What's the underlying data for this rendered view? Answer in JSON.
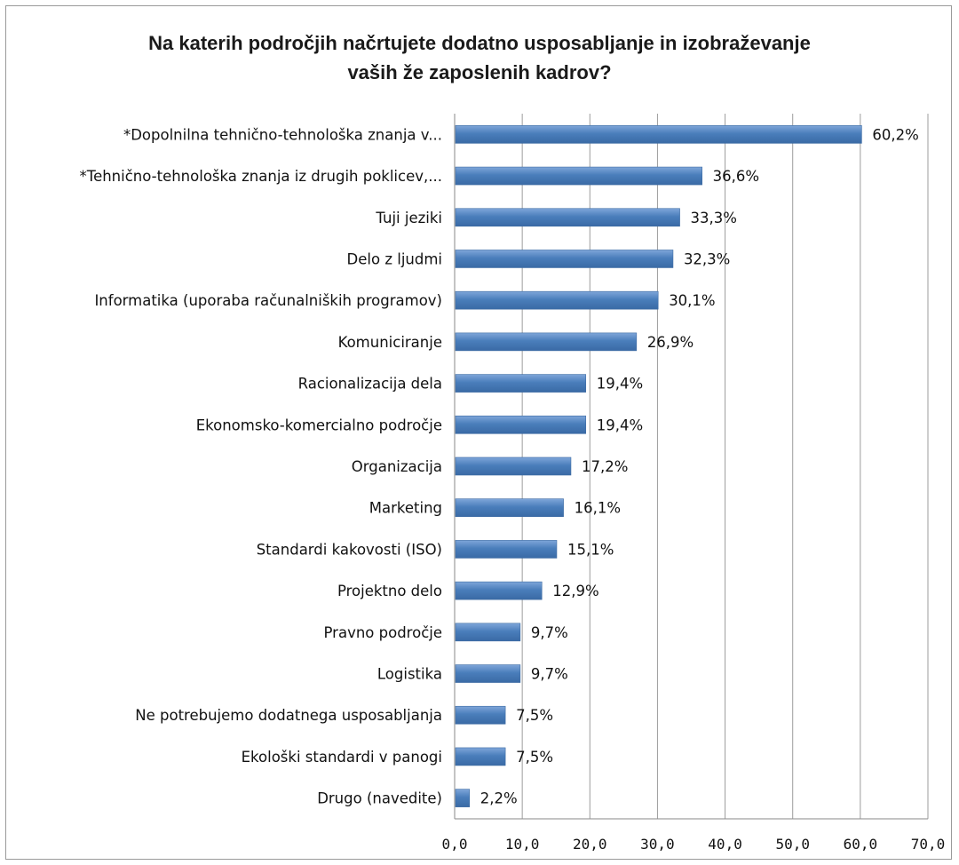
{
  "chart_data": {
    "type": "bar",
    "orientation": "horizontal",
    "title_lines": [
      "Na katerih področjih načrtujete dodatno usposabljanje  in izobraževanje",
      "vaših že zaposlenih kadrov?"
    ],
    "categories": [
      "*Dopolnilna tehnično-tehnološka znanja v...",
      "*Tehnično-tehnološka znanja iz drugih poklicev,...",
      "Tuji jeziki",
      "Delo z ljudmi",
      "Informatika (uporaba računalniških programov)",
      "Komuniciranje",
      "Racionalizacija dela",
      "Ekonomsko-komercialno področje",
      "Organizacija",
      "Marketing",
      "Standardi kakovosti (ISO)",
      "Projektno delo",
      "Pravno področje",
      "Logistika",
      "Ne potrebujemo dodatnega usposabljanja",
      "Ekološki standardi v panogi",
      "Drugo (navedite)"
    ],
    "values": [
      60.2,
      36.6,
      33.3,
      32.3,
      30.1,
      26.9,
      19.4,
      19.4,
      17.2,
      16.1,
      15.1,
      12.9,
      9.7,
      9.7,
      7.5,
      7.5,
      2.2
    ],
    "value_labels": [
      "60,2%",
      "36,6%",
      "33,3%",
      "32,3%",
      "30,1%",
      "26,9%",
      "19,4%",
      "19,4%",
      "17,2%",
      "16,1%",
      "15,1%",
      "12,9%",
      "9,7%",
      "9,7%",
      "7,5%",
      "7,5%",
      "2,2%"
    ],
    "xticks": [
      0,
      10,
      20,
      30,
      40,
      50,
      60,
      70
    ],
    "xtick_labels": [
      "0,0",
      "10,0",
      "20,0",
      "30,0",
      "40,0",
      "50,0",
      "60,0",
      "70,0"
    ],
    "xlim": [
      0,
      70
    ],
    "grid": "vertical",
    "legend": "none",
    "bar_color": "#4a7ebb"
  }
}
